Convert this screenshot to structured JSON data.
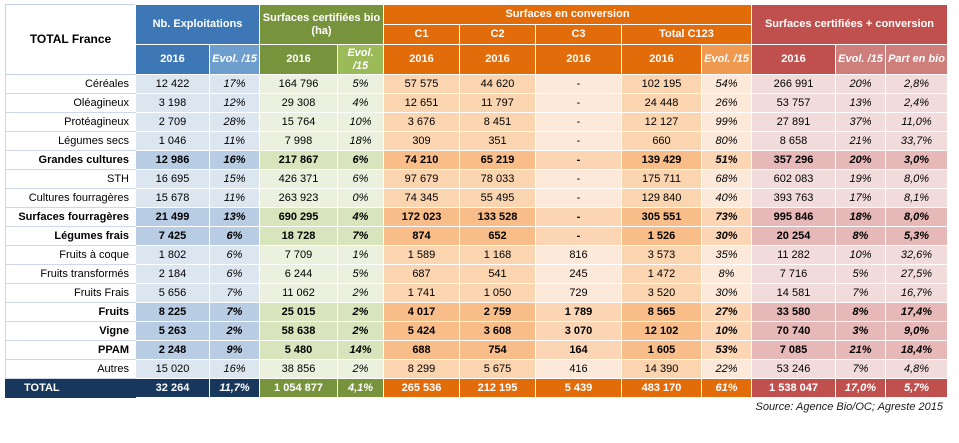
{
  "colors": {
    "blue": "#3d77b5",
    "green": "#77933c",
    "orange": "#e26b0a",
    "red": "#c0504d",
    "total_navy": "#17375d"
  },
  "chart_data": {
    "type": "table",
    "title": "TOTAL France",
    "column_groups": [
      {
        "label": "Nb. Exploitations",
        "columns": [
          "2016",
          "Evol. /15"
        ]
      },
      {
        "label": "Surfaces certifiées bio (ha)",
        "columns": [
          "2016",
          "Evol. /15"
        ]
      },
      {
        "label": "Surfaces en conversion",
        "subgroups": [
          "C1",
          "C2",
          "C3",
          "Total C123"
        ],
        "columns": [
          "2016",
          "2016",
          "2016",
          "2016",
          "Evol. /15"
        ]
      },
      {
        "label": "Surfaces certifiées + conversion",
        "columns": [
          "2016",
          "Evol. /15",
          "Part en bio"
        ]
      }
    ],
    "rows": [
      {
        "label": "Céréales",
        "style": "normal",
        "values": [
          "12 422",
          "17%",
          "164 796",
          "5%",
          "57 575",
          "44 620",
          "-",
          "102 195",
          "54%",
          "266 991",
          "20%",
          "2,8%"
        ]
      },
      {
        "label": "Oléagineux",
        "style": "normal",
        "values": [
          "3 198",
          "12%",
          "29 308",
          "4%",
          "12 651",
          "11 797",
          "-",
          "24 448",
          "26%",
          "53 757",
          "13%",
          "2,4%"
        ]
      },
      {
        "label": "Protéagineux",
        "style": "normal",
        "values": [
          "2 709",
          "28%",
          "15 764",
          "10%",
          "3 676",
          "8 451",
          "-",
          "12 127",
          "99%",
          "27 891",
          "37%",
          "11,0%"
        ]
      },
      {
        "label": "Légumes secs",
        "style": "normal",
        "values": [
          "1 046",
          "11%",
          "7 998",
          "18%",
          "309",
          "351",
          "-",
          "660",
          "80%",
          "8 658",
          "21%",
          "33,7%"
        ]
      },
      {
        "label": "Grandes cultures",
        "style": "category",
        "values": [
          "12 986",
          "16%",
          "217 867",
          "6%",
          "74 210",
          "65 219",
          "-",
          "139 429",
          "51%",
          "357 296",
          "20%",
          "3,0%"
        ]
      },
      {
        "label": "STH",
        "style": "normal",
        "values": [
          "16 695",
          "15%",
          "426 371",
          "6%",
          "97 679",
          "78 033",
          "-",
          "175 711",
          "68%",
          "602 083",
          "19%",
          "8,0%"
        ]
      },
      {
        "label": "Cultures fourragères",
        "style": "normal",
        "values": [
          "15 678",
          "11%",
          "263 923",
          "0%",
          "74 345",
          "55 495",
          "-",
          "129 840",
          "40%",
          "393 763",
          "17%",
          "8,1%"
        ]
      },
      {
        "label": "Surfaces fourragères",
        "style": "category",
        "values": [
          "21 499",
          "13%",
          "690 295",
          "4%",
          "172 023",
          "133 528",
          "-",
          "305 551",
          "73%",
          "995 846",
          "18%",
          "8,0%"
        ]
      },
      {
        "label": "Légumes frais",
        "style": "category",
        "values": [
          "7 425",
          "6%",
          "18 728",
          "7%",
          "874",
          "652",
          "-",
          "1 526",
          "30%",
          "20 254",
          "8%",
          "5,3%"
        ]
      },
      {
        "label": "Fruits à coque",
        "style": "normal",
        "values": [
          "1 802",
          "6%",
          "7 709",
          "1%",
          "1 589",
          "1 168",
          "816",
          "3 573",
          "35%",
          "11 282",
          "10%",
          "32,6%"
        ]
      },
      {
        "label": "Fruits transformés",
        "style": "normal",
        "values": [
          "2 184",
          "6%",
          "6 244",
          "5%",
          "687",
          "541",
          "245",
          "1 472",
          "8%",
          "7 716",
          "5%",
          "27,5%"
        ]
      },
      {
        "label": "Fruits Frais",
        "style": "normal",
        "values": [
          "5 656",
          "7%",
          "11 062",
          "2%",
          "1 741",
          "1 050",
          "729",
          "3 520",
          "30%",
          "14 581",
          "7%",
          "16,7%"
        ]
      },
      {
        "label": "Fruits",
        "style": "category",
        "values": [
          "8 225",
          "7%",
          "25 015",
          "2%",
          "4 017",
          "2 759",
          "1 789",
          "8 565",
          "27%",
          "33 580",
          "8%",
          "17,4%"
        ]
      },
      {
        "label": "Vigne",
        "style": "category",
        "values": [
          "5 263",
          "2%",
          "58 638",
          "2%",
          "5 424",
          "3 608",
          "3 070",
          "12 102",
          "10%",
          "70 740",
          "3%",
          "9,0%"
        ]
      },
      {
        "label": "PPAM",
        "style": "category",
        "values": [
          "2 248",
          "9%",
          "5 480",
          "14%",
          "688",
          "754",
          "164",
          "1 605",
          "53%",
          "7 085",
          "21%",
          "18,4%"
        ]
      },
      {
        "label": "Autres",
        "style": "normal",
        "values": [
          "15 020",
          "16%",
          "38 856",
          "2%",
          "8 299",
          "5 675",
          "416",
          "14 390",
          "22%",
          "53 246",
          "7%",
          "4,8%"
        ]
      }
    ],
    "total_row": {
      "label": "TOTAL",
      "style": "total",
      "values": [
        "32 264",
        "11,7%",
        "1 054 877",
        "4,1%",
        "265 536",
        "212 195",
        "5 439",
        "483 170",
        "61%",
        "1 538 047",
        "17,0%",
        "5,7%"
      ]
    },
    "source": "Source: Agence Bio/OC; Agreste 2015"
  }
}
